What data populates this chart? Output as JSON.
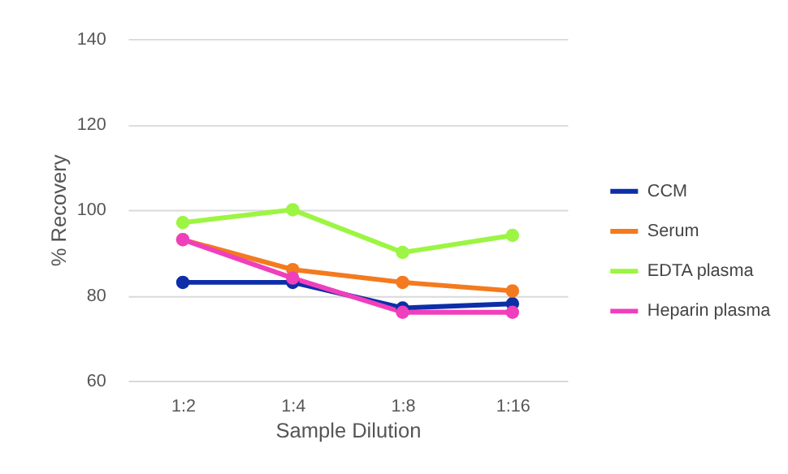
{
  "chart_data": {
    "type": "line",
    "xlabel": "Sample Dilution",
    "ylabel": "% Recovery",
    "categories": [
      "1:2",
      "1:4",
      "1:8",
      "1:16"
    ],
    "series": [
      {
        "name": "CCM",
        "color": "#0d2ea8",
        "values": [
          83,
          83,
          77,
          78
        ]
      },
      {
        "name": "Serum",
        "color": "#f47a1f",
        "values": [
          93,
          86,
          83,
          81
        ]
      },
      {
        "name": "EDTA plasma",
        "color": "#9cf542",
        "values": [
          97,
          100,
          90,
          94
        ]
      },
      {
        "name": "Heparin plasma",
        "color": "#f03fbd",
        "values": [
          93,
          84,
          76,
          76
        ]
      }
    ],
    "ylim": [
      60,
      140
    ],
    "yticks": [
      60,
      80,
      100,
      120,
      140
    ],
    "grid": "y",
    "legend": "right",
    "marker": "circle",
    "line_style": "solid"
  }
}
